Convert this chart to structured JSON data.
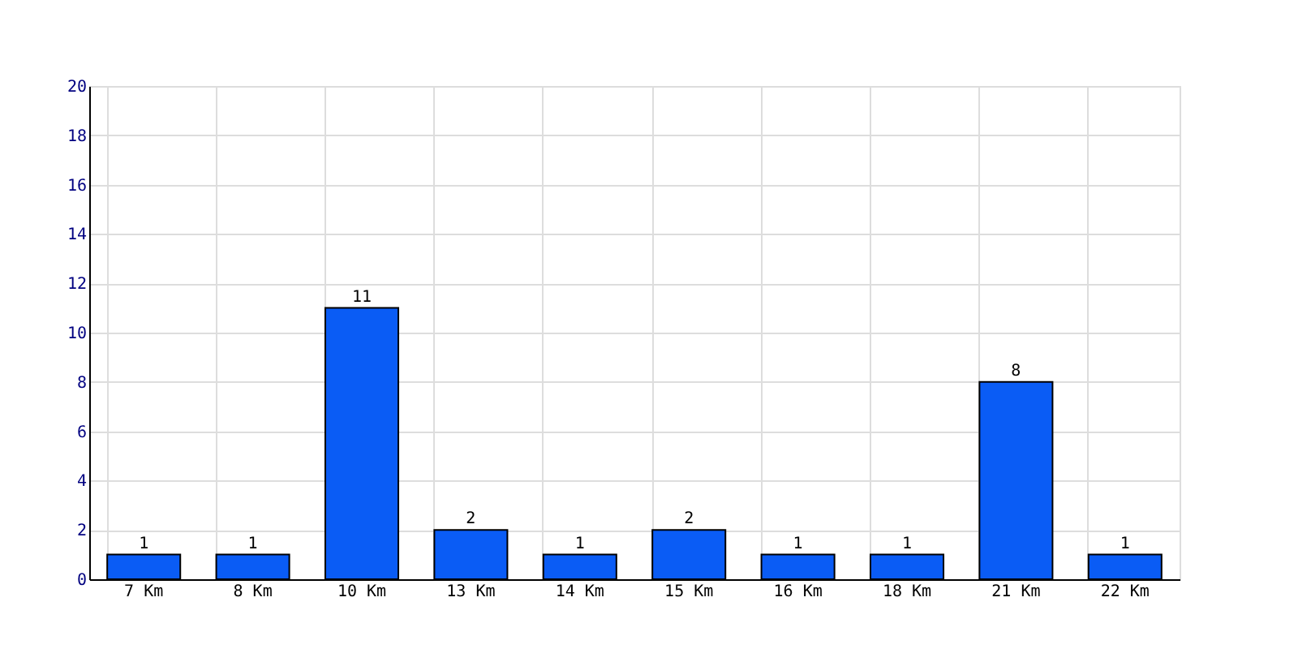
{
  "chart_data": {
    "type": "bar",
    "categories": [
      "7 Km",
      "8 Km",
      "10 Km",
      "13 Km",
      "14 Km",
      "15 Km",
      "16 Km",
      "18 Km",
      "21 Km",
      "22 Km"
    ],
    "values": [
      1,
      1,
      11,
      2,
      1,
      2,
      1,
      1,
      8,
      1
    ],
    "color": "#0a5cf5",
    "ylim": [
      0,
      20
    ],
    "yticks": [
      0,
      2,
      4,
      6,
      8,
      10,
      12,
      14,
      16,
      18,
      20
    ],
    "grid": true,
    "data_labels": true
  }
}
